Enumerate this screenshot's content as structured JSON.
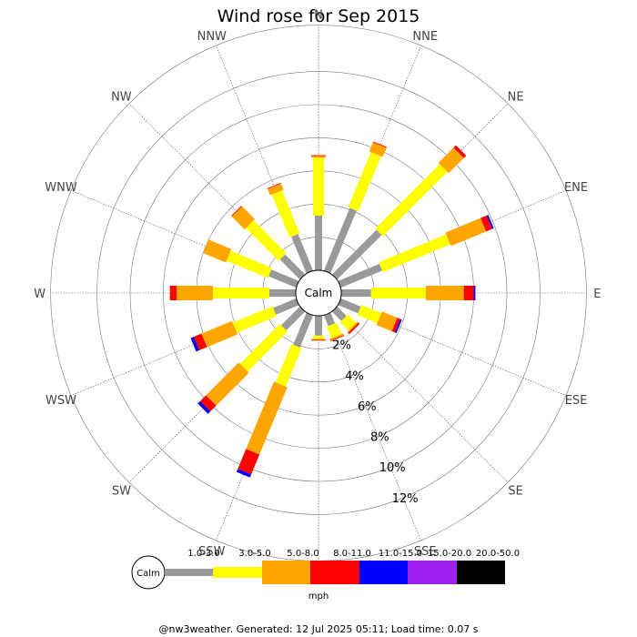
{
  "chart_data": {
    "type": "wind-rose",
    "title": "Wind rose for Sep 2015",
    "directions": [
      "N",
      "NNE",
      "NE",
      "ENE",
      "E",
      "ESE",
      "SE",
      "SSE",
      "S",
      "SSW",
      "SW",
      "WSW",
      "W",
      "WNW",
      "NW",
      "NNW"
    ],
    "calm_label": "Calm",
    "radial_unit": "%",
    "radial_ticks": [
      2,
      4,
      6,
      8,
      10,
      12
    ],
    "radial_tick_labels": [
      "2%",
      "4%",
      "6%",
      "8%",
      "10%",
      "12%"
    ],
    "speed_unit": "mph",
    "speed_bins": [
      {
        "label": "1.0-3.0",
        "color": "#999999"
      },
      {
        "label": "3.0-5.0",
        "color": "#ffff00"
      },
      {
        "label": "5.0-8.0",
        "color": "#ffa500"
      },
      {
        "label": "8.0-11.0",
        "color": "#ff0000"
      },
      {
        "label": "11.0-15.0",
        "color": "#0000ff"
      },
      {
        "label": "15.0-20.0",
        "color": "#a020f0"
      },
      {
        "label": "20.0-50.0",
        "color": "#000000"
      }
    ],
    "cumulative_percent": {
      "N": [
        3.3,
        6.8,
        6.9,
        6.95,
        6.95,
        6.95,
        6.95
      ],
      "NNE": [
        4.1,
        7.7,
        8.3,
        8.35,
        8.35,
        8.35,
        8.35
      ],
      "NE": [
        3.8,
        9.3,
        10.6,
        10.8,
        10.8,
        10.8,
        10.8
      ],
      "ENE": [
        2.7,
        7.1,
        9.4,
        9.8,
        9.9,
        9.9,
        9.9
      ],
      "E": [
        1.8,
        5.1,
        7.4,
        8.0,
        8.1,
        8.1,
        8.1
      ],
      "ESE": [
        1.3,
        2.6,
        3.6,
        3.8,
        3.9,
        3.9,
        3.9
      ],
      "SE": [
        0.8,
        1.5,
        1.6,
        1.7,
        1.7,
        1.7,
        1.7
      ],
      "SSE": [
        0.7,
        1.45,
        1.55,
        1.6,
        1.6,
        1.6,
        1.6
      ],
      "S": [
        1.2,
        1.4,
        1.45,
        1.5,
        1.5,
        1.5,
        1.5
      ],
      "SSW": [
        2.1,
        4.6,
        9.0,
        10.3,
        10.5,
        10.5,
        10.5
      ],
      "SW": [
        1.6,
        5.0,
        7.8,
        8.3,
        8.5,
        8.5,
        8.5
      ],
      "WSW": [
        1.5,
        4.1,
        6.1,
        6.6,
        6.8,
        6.8,
        6.8
      ],
      "W": [
        1.6,
        5.0,
        7.2,
        7.6,
        7.6,
        7.6,
        7.6
      ],
      "WNW": [
        1.8,
        4.5,
        6.0,
        6.0,
        6.0,
        6.0,
        6.0
      ],
      "NW": [
        1.7,
        4.5,
        5.6,
        5.65,
        5.65,
        5.65,
        5.65
      ],
      "NNW": [
        2.4,
        5.2,
        5.6,
        5.65,
        5.65,
        5.65,
        5.65
      ]
    },
    "grid": true,
    "legend_position": "bottom"
  },
  "footer_text": "@nw3weather.  Generated: 12 Jul 2025 05:11; Load time: 0.07 s"
}
